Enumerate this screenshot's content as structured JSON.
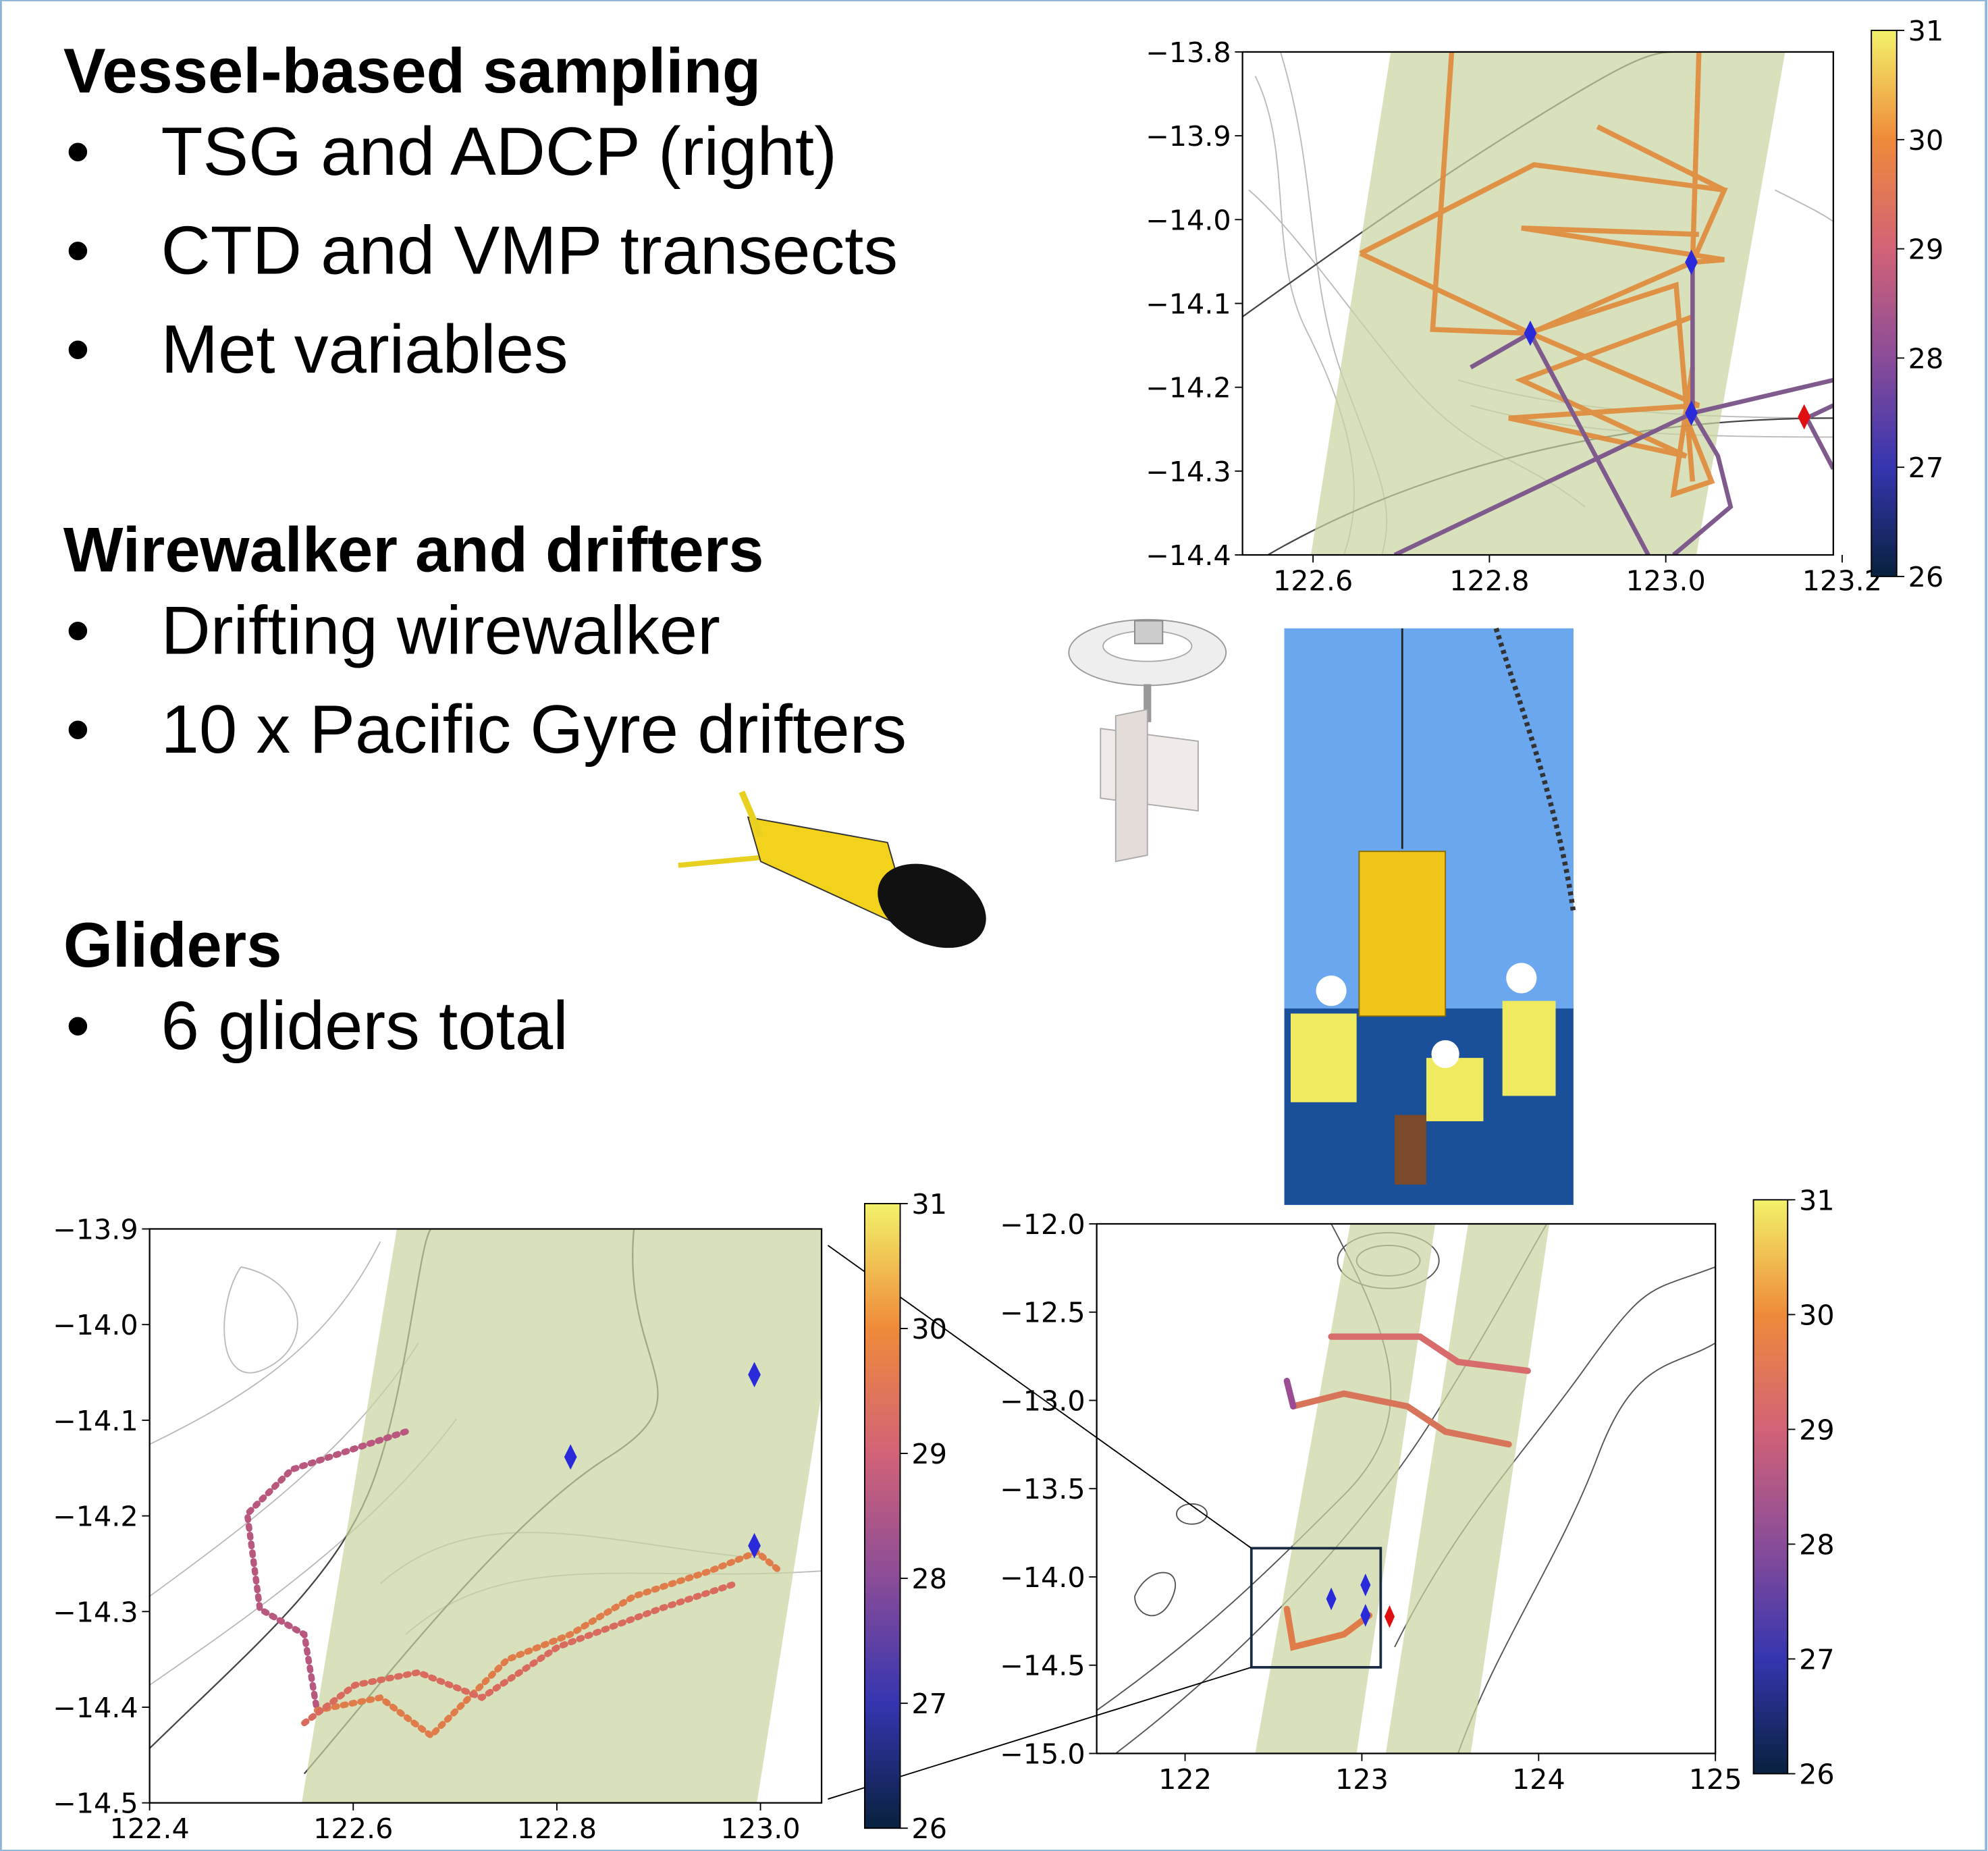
{
  "sections": [
    {
      "heading": "Vessel-based sampling",
      "bullets": [
        "TSG and ADCP (right)",
        "CTD and VMP transects",
        "Met variables"
      ]
    },
    {
      "heading": "Wirewalker and drifters",
      "bullets": [
        "Drifting wirewalker",
        "10 x Pacific Gyre drifters"
      ]
    },
    {
      "heading": "Gliders",
      "bullets": [
        "6 gliders total"
      ]
    }
  ],
  "maps": [
    {
      "xlim": [
        122.52,
        123.19
      ],
      "ylim": [
        -14.4,
        -13.8
      ],
      "xticks": [
        122.6,
        122.8,
        {
          "value": 123,
          "label": "123.0"
        },
        123.2
      ],
      "yticks": [
        {
          "value": -13.8,
          "label": "−13.8"
        },
        {
          "value": -13.9,
          "label": "−13.9"
        },
        {
          "value": -14,
          "label": "−14.0"
        },
        {
          "value": -14.1,
          "label": "−14.1"
        },
        {
          "value": -14.2,
          "label": "−14.2"
        },
        {
          "value": -14.3,
          "label": "−14.3"
        },
        {
          "value": -14.4,
          "label": "−14.4"
        }
      ],
      "colorbar": {
        "lim": [
          26,
          31
        ],
        "ticks": [
          26,
          27,
          28,
          29,
          30,
          31
        ]
      }
    },
    {
      "xlim": [
        122.4,
        123.06
      ],
      "ylim": [
        -14.5,
        -13.9
      ],
      "xticks": [
        122.4,
        122.6,
        122.8,
        {
          "value": 123,
          "label": "123.0"
        }
      ],
      "yticks": [
        {
          "value": -13.9,
          "label": "−13.9"
        },
        {
          "value": -14,
          "label": "−14.0"
        },
        {
          "value": -14.1,
          "label": "−14.1"
        },
        {
          "value": -14.2,
          "label": "−14.2"
        },
        {
          "value": -14.3,
          "label": "−14.3"
        },
        {
          "value": -14.4,
          "label": "−14.4"
        },
        {
          "value": -14.5,
          "label": "−14.5"
        }
      ],
      "colorbar": {
        "lim": [
          26,
          31
        ],
        "ticks": [
          26,
          27,
          28,
          29,
          30,
          31
        ]
      }
    },
    {
      "xlim": [
        121.5,
        125
      ],
      "ylim": [
        -15,
        -12
      ],
      "xticks": [
        122,
        123,
        124,
        125
      ],
      "yticks": [
        {
          "value": -12,
          "label": "−12.0"
        },
        {
          "value": -12.5,
          "label": "−12.5"
        },
        {
          "value": -13,
          "label": "−13.0"
        },
        {
          "value": -13.5,
          "label": "−13.5"
        },
        {
          "value": -14,
          "label": "−14.0"
        },
        {
          "value": -14.5,
          "label": "−14.5"
        },
        {
          "value": -15,
          "label": "−15.0"
        }
      ],
      "colorbar": {
        "lim": [
          26,
          31
        ],
        "ticks": [
          26,
          27,
          28,
          29,
          30,
          31
        ]
      }
    }
  ]
}
